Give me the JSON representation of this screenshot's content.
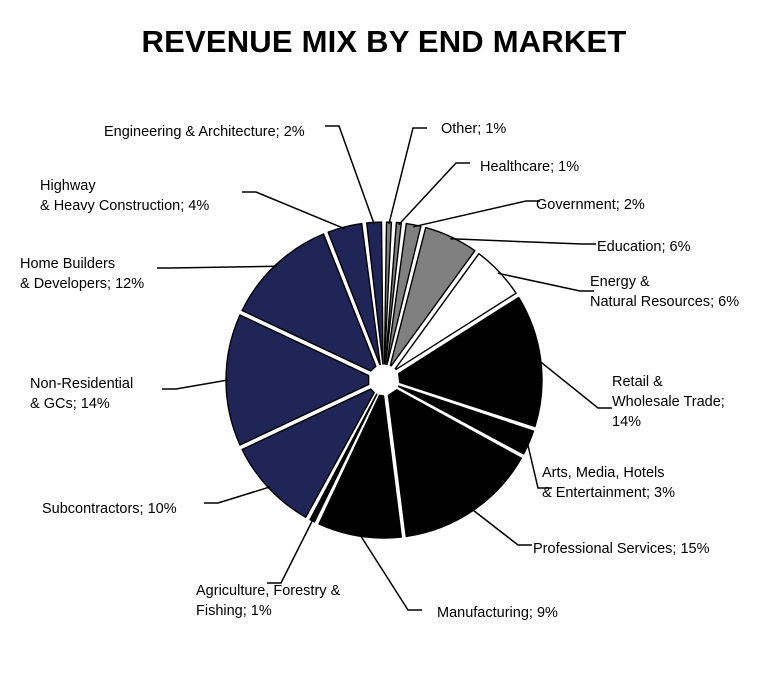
{
  "chart_data": {
    "type": "pie",
    "title": "REVENUE MIX BY END MARKET",
    "slices": [
      {
        "name": "Other",
        "value": 1,
        "label": [
          "Other; 1%"
        ],
        "color": "#808080",
        "stroke": "#000000"
      },
      {
        "name": "Healthcare",
        "value": 1,
        "label": [
          "Healthcare; 1%"
        ],
        "color": "#808080",
        "stroke": "#000000"
      },
      {
        "name": "Government",
        "value": 2,
        "label": [
          "Government; 2%"
        ],
        "color": "#808080",
        "stroke": "#000000"
      },
      {
        "name": "Education",
        "value": 6,
        "label": [
          "Education; 6%"
        ],
        "color": "#808080",
        "stroke": "#000000"
      },
      {
        "name": "Energy & Natural Resources",
        "value": 6,
        "label": [
          "Energy &",
          "Natural Resources; 6%"
        ],
        "color": "#ffffff",
        "stroke": "#000000"
      },
      {
        "name": "Retail & Wholesale Trade",
        "value": 14,
        "label": [
          "Retail &",
          "Wholesale Trade;",
          "14%"
        ],
        "color": "#000000",
        "stroke": "#000000"
      },
      {
        "name": "Arts, Media, Hotels & Entertainment",
        "value": 3,
        "label": [
          "Arts, Media, Hotels",
          "& Entertainment; 3%"
        ],
        "color": "#000000",
        "stroke": "#000000"
      },
      {
        "name": "Professional Services",
        "value": 15,
        "label": [
          "Professional Services; 15%"
        ],
        "color": "#000000",
        "stroke": "#000000"
      },
      {
        "name": "Manufacturing",
        "value": 9,
        "label": [
          "Manufacturing; 9%"
        ],
        "color": "#000000",
        "stroke": "#000000"
      },
      {
        "name": "Agriculture, Forestry & Fishing",
        "value": 1,
        "label": [
          "Agriculture, Forestry &",
          "Fishing; 1%"
        ],
        "color": "#000000",
        "stroke": "#000000"
      },
      {
        "name": "Subcontractors",
        "value": 10,
        "label": [
          "Subcontractors; 10%"
        ],
        "color": "#1f2657",
        "stroke": "#000000"
      },
      {
        "name": "Non-Residential & GCs",
        "value": 14,
        "label": [
          "Non-Residential",
          "& GCs; 14%"
        ],
        "color": "#1f2657",
        "stroke": "#000000"
      },
      {
        "name": "Home Builders & Developers",
        "value": 12,
        "label": [
          "Home Builders",
          "& Developers; 12%"
        ],
        "color": "#1f2657",
        "stroke": "#000000"
      },
      {
        "name": "Highway & Heavy Construction",
        "value": 4,
        "label": [
          "Highway",
          "& Heavy Construction; 4%"
        ],
        "color": "#1f2657",
        "stroke": "#000000"
      },
      {
        "name": "Engineering & Architecture",
        "value": 2,
        "label": [
          "Engineering & Architecture; 2%"
        ],
        "color": "#1f2657",
        "stroke": "#000000"
      }
    ],
    "start": "12 o'clock",
    "direction": "clockwise",
    "exploded": true,
    "legend": "none"
  }
}
